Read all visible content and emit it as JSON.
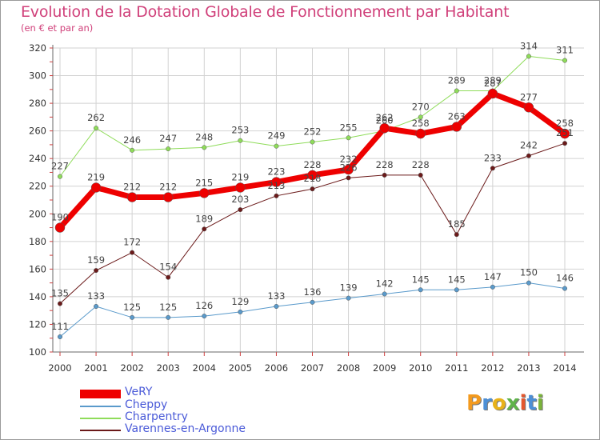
{
  "title": "Evolution de la Dotation Globale de Fonctionnement par Habitant",
  "subtitle": "(en € et par an)",
  "logo_text": "Proxiti",
  "colors": {
    "title": "#d0407a",
    "grid": "#d2d2d2",
    "axis": "#6a6a6a",
    "legend_text": "#4a5ad8"
  },
  "chart_data": {
    "type": "line",
    "title": "Evolution de la Dotation Globale de Fonctionnement par Habitant",
    "subtitle": "(en € et par an)",
    "xlabel": "",
    "ylabel": "",
    "categories": [
      "2000",
      "2001",
      "2002",
      "2003",
      "2004",
      "2005",
      "2006",
      "2007",
      "2008",
      "2009",
      "2010",
      "2011",
      "2012",
      "2013",
      "2014"
    ],
    "ylim": [
      100,
      320
    ],
    "yticks": [
      100,
      120,
      140,
      160,
      180,
      200,
      220,
      240,
      260,
      280,
      300,
      320
    ],
    "grid": true,
    "legend_position": "bottom-left",
    "series": [
      {
        "name": "Varennes-en-Argonne",
        "color": "#6b1a1a",
        "values": [
          135,
          159,
          172,
          154,
          189,
          203,
          213,
          218,
          226,
          228,
          228,
          185,
          233,
          242,
          251
        ],
        "labels": [
          "135",
          "159",
          "172",
          "154",
          "189",
          "203",
          "213",
          "218",
          "226",
          "228",
          "228",
          "185",
          "233",
          "242",
          "251"
        ],
        "width": 1,
        "marker": 4.5
      },
      {
        "name": "Charpentry",
        "color": "#8fdc5a",
        "values": [
          227,
          262,
          246,
          247,
          248,
          253,
          249,
          252,
          255,
          260,
          270,
          289,
          289,
          314,
          311
        ],
        "labels": [
          "227",
          "262",
          "246",
          "247",
          "248",
          "253",
          "249",
          "252",
          "255",
          "260",
          "270",
          "289",
          "289",
          "314",
          "311"
        ],
        "width": 1,
        "marker": 4.5
      },
      {
        "name": "Cheppy",
        "color": "#5a9acb",
        "values": [
          111,
          133,
          125,
          125,
          126,
          129,
          133,
          136,
          139,
          142,
          145,
          145,
          147,
          150,
          146
        ],
        "labels": [
          "111",
          "133",
          "125",
          "125",
          "126",
          "129",
          "133",
          "136",
          "139",
          "142",
          "145",
          "145",
          "147",
          "150",
          "146"
        ],
        "width": 1,
        "marker": 4.5
      },
      {
        "name": "VeRY",
        "color": "#ee0000",
        "values": [
          190,
          219,
          212,
          212,
          215,
          219,
          223,
          228,
          232,
          262,
          258,
          263,
          287,
          277,
          258
        ],
        "labels": [
          "190",
          "219",
          "212",
          "212",
          "215",
          "219",
          "223",
          "228",
          "232",
          "262",
          "258",
          "263",
          "287",
          "277",
          "258"
        ],
        "width": 7,
        "marker": 7
      }
    ]
  },
  "legend": [
    {
      "label": "VeRY",
      "color": "#ee0000",
      "thick": true
    },
    {
      "label": "Cheppy",
      "color": "#5a9acb",
      "thick": false
    },
    {
      "label": "Charpentry",
      "color": "#8fdc5a",
      "thick": false
    },
    {
      "label": "Varennes-en-Argonne",
      "color": "#6b1a1a",
      "thick": false
    }
  ]
}
